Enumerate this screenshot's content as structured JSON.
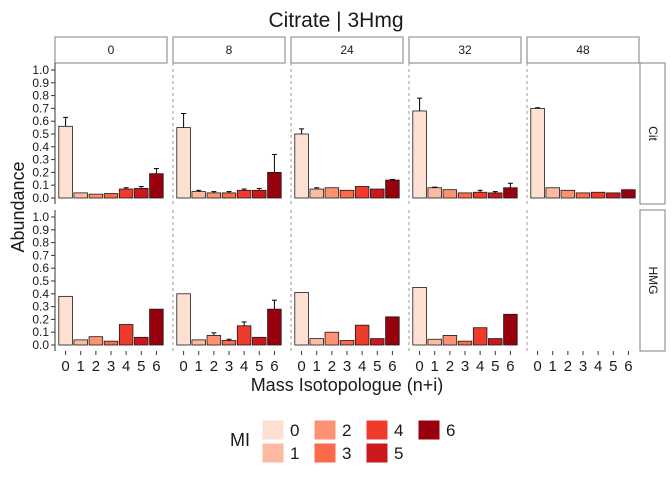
{
  "chart_data": {
    "type": "bar",
    "title": "Citrate | 3Hmg",
    "xlabel": "Mass Isotopologue (n+i)",
    "ylabel": "Abundance",
    "ylim": [
      0,
      1
    ],
    "yticks": [
      "0.0",
      "0.1",
      "0.2",
      "0.3",
      "0.4",
      "0.5",
      "0.6",
      "0.7",
      "0.8",
      "0.9",
      "1.0"
    ],
    "categories": [
      "0",
      "1",
      "2",
      "3",
      "4",
      "5",
      "6"
    ],
    "facet_cols": [
      "0",
      "8",
      "24",
      "32",
      "48"
    ],
    "facet_rows": [
      "Cit",
      "HMG"
    ],
    "legend": {
      "title": "MI",
      "placement": "bottom",
      "entries": [
        "0",
        "1",
        "2",
        "3",
        "4",
        "5",
        "6"
      ],
      "colors": [
        "#fee0d2",
        "#fcbba1",
        "#fc9272",
        "#fb6a4a",
        "#ef3b2c",
        "#cb181d",
        "#99000d"
      ]
    },
    "panels": [
      {
        "row": "Cit",
        "col": "0",
        "values": [
          0.56,
          0.04,
          0.03,
          0.035,
          0.07,
          0.075,
          0.19
        ],
        "err": [
          0.07,
          0.0,
          0.0,
          0.0,
          0.01,
          0.015,
          0.04
        ],
        "left_dash": false
      },
      {
        "row": "Cit",
        "col": "8",
        "values": [
          0.55,
          0.05,
          0.04,
          0.04,
          0.06,
          0.06,
          0.2
        ],
        "err": [
          0.11,
          0.01,
          0.01,
          0.01,
          0.01,
          0.015,
          0.14
        ],
        "left_dash": true
      },
      {
        "row": "Cit",
        "col": "24",
        "values": [
          0.5,
          0.07,
          0.08,
          0.06,
          0.09,
          0.07,
          0.14
        ],
        "err": [
          0.04,
          0.01,
          0.0,
          0.0,
          0.0,
          0.0,
          0.005
        ],
        "left_dash": true
      },
      {
        "row": "Cit",
        "col": "32",
        "values": [
          0.68,
          0.08,
          0.065,
          0.04,
          0.045,
          0.04,
          0.08
        ],
        "err": [
          0.1,
          0.005,
          0.0,
          0.0,
          0.015,
          0.01,
          0.035
        ],
        "left_dash": true
      },
      {
        "row": "Cit",
        "col": "48",
        "values": [
          0.7,
          0.08,
          0.06,
          0.04,
          0.045,
          0.04,
          0.065
        ],
        "err": [
          0.005,
          0.0,
          0.0,
          0.0,
          0.0,
          0.0,
          0.0
        ],
        "left_dash": true
      },
      {
        "row": "HMG",
        "col": "0",
        "values": [
          0.38,
          0.04,
          0.065,
          0.03,
          0.16,
          0.06,
          0.28
        ],
        "err": [
          0.0,
          0.0,
          0.0,
          0.0,
          0.0,
          0.0,
          0.0
        ],
        "left_dash": false
      },
      {
        "row": "HMG",
        "col": "8",
        "values": [
          0.4,
          0.04,
          0.075,
          0.035,
          0.15,
          0.06,
          0.28
        ],
        "err": [
          0.0,
          0.0,
          0.02,
          0.01,
          0.03,
          0.0,
          0.07
        ],
        "left_dash": true
      },
      {
        "row": "HMG",
        "col": "24",
        "values": [
          0.41,
          0.05,
          0.1,
          0.035,
          0.155,
          0.05,
          0.22
        ],
        "err": [
          0.0,
          0.0,
          0.0,
          0.0,
          0.0,
          0.0,
          0.0
        ],
        "left_dash": true
      },
      {
        "row": "HMG",
        "col": "32",
        "values": [
          0.45,
          0.045,
          0.075,
          0.03,
          0.135,
          0.05,
          0.24
        ],
        "err": [
          0.0,
          0.0,
          0.0,
          0.0,
          0.0,
          0.0,
          0.0
        ],
        "left_dash": true
      },
      {
        "row": "HMG",
        "col": "48",
        "values": [],
        "err": [],
        "left_dash": true
      }
    ]
  }
}
